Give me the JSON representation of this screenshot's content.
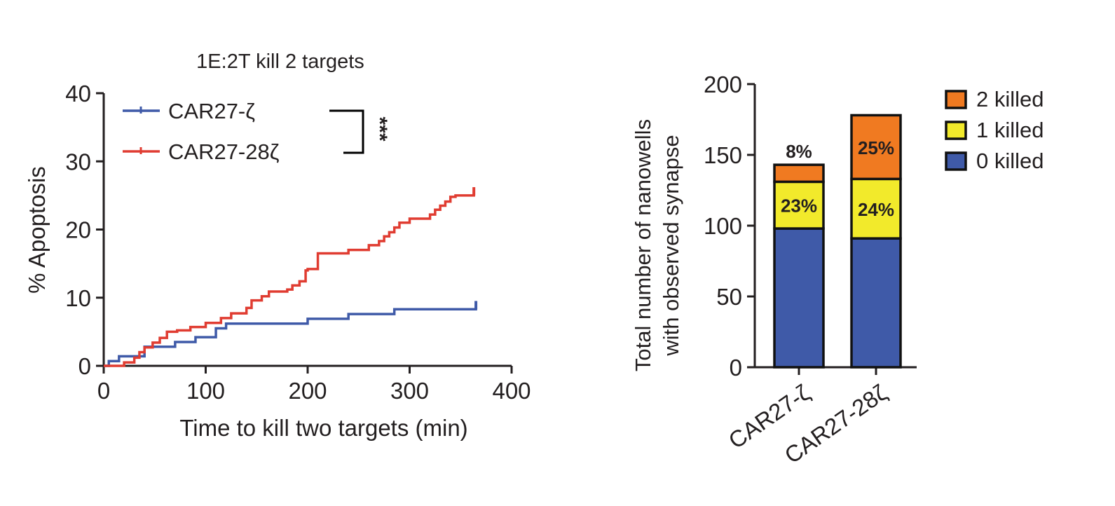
{
  "chart_data": [
    {
      "type": "line",
      "step": true,
      "title": "1E:2T kill 2 targets",
      "xlabel": "Time to kill two targets (min)",
      "ylabel": "% Apoptosis",
      "xlim": [
        0,
        400
      ],
      "ylim": [
        0,
        40
      ],
      "xticks": [
        "0",
        "100",
        "200",
        "300",
        "400"
      ],
      "yticks": [
        "0",
        "10",
        "20",
        "30",
        "40"
      ],
      "significance": "***",
      "legend_position": "top-left",
      "series": [
        {
          "name": "CAR27-ζ",
          "color": "#3f5aa8",
          "x": [
            0,
            5,
            15,
            25,
            40,
            70,
            90,
            110,
            120,
            200,
            240,
            285,
            365
          ],
          "y": [
            0,
            0.7,
            1.4,
            1.4,
            2.8,
            3.5,
            4.2,
            5.5,
            6.2,
            6.9,
            7.6,
            8.3,
            8.9
          ]
        },
        {
          "name": "CAR27-28ζ",
          "color": "#e03c31",
          "x": [
            0,
            20,
            30,
            35,
            40,
            48,
            55,
            62,
            72,
            85,
            100,
            115,
            125,
            140,
            145,
            155,
            162,
            180,
            185,
            192,
            198,
            200,
            210,
            240,
            260,
            270,
            275,
            280,
            285,
            290,
            300,
            320,
            325,
            330,
            335,
            340,
            345,
            360,
            363
          ],
          "y": [
            0,
            0.5,
            1.2,
            2.0,
            2.7,
            3.4,
            4.1,
            5.0,
            5.2,
            5.7,
            6.3,
            7.0,
            7.7,
            8.5,
            9.6,
            10.2,
            10.9,
            11.2,
            11.8,
            12.4,
            14.0,
            14.2,
            16.5,
            17.0,
            17.7,
            18.3,
            19.0,
            19.6,
            20.3,
            21.0,
            21.6,
            22.2,
            22.9,
            23.5,
            24.1,
            24.8,
            25.0,
            25.0,
            25.6
          ]
        }
      ]
    },
    {
      "type": "bar",
      "stacked": true,
      "ylabel_lines": [
        "Total number of nanowells",
        "with observed synapse"
      ],
      "ylim": [
        0,
        200
      ],
      "yticks": [
        "0",
        "50",
        "100",
        "150",
        "200"
      ],
      "categories": [
        "CAR27-ζ",
        "CAR27-28ζ"
      ],
      "legend_position": "right",
      "series": [
        {
          "name": "0 killed",
          "color": "#3f5aa8",
          "values": [
            98,
            91
          ]
        },
        {
          "name": "1 killed",
          "color": "#f2ea2b",
          "values": [
            33,
            42
          ]
        },
        {
          "name": "2 killed",
          "color": "#f07a21",
          "values": [
            12,
            45
          ]
        }
      ],
      "legend_order": [
        "2 killed",
        "1 killed",
        "0 killed"
      ],
      "data_labels": [
        {
          "series": "2 killed",
          "category": "CAR27-ζ",
          "text": "8%",
          "placement": "above"
        },
        {
          "series": "1 killed",
          "category": "CAR27-ζ",
          "text": "23%",
          "placement": "inside"
        },
        {
          "series": "2 killed",
          "category": "CAR27-28ζ",
          "text": "25%",
          "placement": "inside"
        },
        {
          "series": "1 killed",
          "category": "CAR27-28ζ",
          "text": "24%",
          "placement": "inside"
        }
      ]
    }
  ]
}
